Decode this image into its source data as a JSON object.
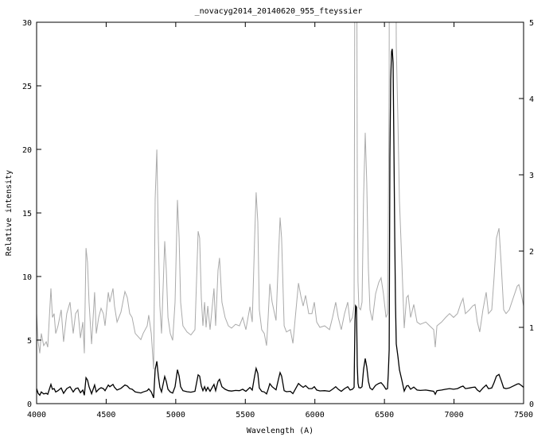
{
  "chart_data": {
    "type": "line",
    "title": "_novacyg2014_20140620_955_fteyssier",
    "xlabel": "Wavelength (A)",
    "ylabel": "Relative intensity",
    "xlim": [
      4000,
      7500
    ],
    "ylim_left": [
      0,
      30
    ],
    "ylim_right": [
      0,
      5
    ],
    "x_ticks": [
      4000,
      4500,
      5000,
      5500,
      6000,
      6500,
      7000,
      7500
    ],
    "y_ticks_left": [
      0,
      5,
      10,
      15,
      20,
      25,
      30
    ],
    "y_ticks_right": [
      0,
      1,
      2,
      3,
      4,
      5
    ],
    "grid": false,
    "series": [
      {
        "axis": "left",
        "color": "#000000"
      },
      {
        "axis": "right",
        "color": "#aaaaaa"
      }
    ],
    "points": [
      [
        4000,
        1.18
      ],
      [
        4011,
        0.81
      ],
      [
        4023,
        0.66
      ],
      [
        4034,
        0.92
      ],
      [
        4051,
        0.76
      ],
      [
        4069,
        0.81
      ],
      [
        4080,
        0.74
      ],
      [
        4103,
        1.51
      ],
      [
        4114,
        1.13
      ],
      [
        4126,
        1.18
      ],
      [
        4137,
        0.92
      ],
      [
        4154,
        1.02
      ],
      [
        4177,
        1.23
      ],
      [
        4194,
        0.81
      ],
      [
        4217,
        1.18
      ],
      [
        4240,
        1.33
      ],
      [
        4263,
        0.92
      ],
      [
        4280,
        1.18
      ],
      [
        4297,
        1.23
      ],
      [
        4315,
        0.86
      ],
      [
        4332,
        1.07
      ],
      [
        4343,
        0.66
      ],
      [
        4355,
        2.04
      ],
      [
        4366,
        1.85
      ],
      [
        4377,
        1.33
      ],
      [
        4395,
        0.78
      ],
      [
        4417,
        1.46
      ],
      [
        4429,
        0.92
      ],
      [
        4446,
        1.13
      ],
      [
        4463,
        1.25
      ],
      [
        4480,
        1.18
      ],
      [
        4492,
        1.02
      ],
      [
        4515,
        1.46
      ],
      [
        4526,
        1.33
      ],
      [
        4549,
        1.51
      ],
      [
        4560,
        1.28
      ],
      [
        4578,
        1.07
      ],
      [
        4606,
        1.2
      ],
      [
        4635,
        1.47
      ],
      [
        4652,
        1.39
      ],
      [
        4669,
        1.18
      ],
      [
        4686,
        1.13
      ],
      [
        4709,
        0.92
      ],
      [
        4749,
        0.84
      ],
      [
        4766,
        0.92
      ],
      [
        4795,
        1.02
      ],
      [
        4806,
        1.16
      ],
      [
        4824,
        0.92
      ],
      [
        4841,
        0.45
      ],
      [
        4852,
        2.69
      ],
      [
        4864,
        3.33
      ],
      [
        4875,
        2.17
      ],
      [
        4886,
        1.28
      ],
      [
        4898,
        0.92
      ],
      [
        4921,
        2.13
      ],
      [
        4932,
        1.75
      ],
      [
        4944,
        1.13
      ],
      [
        4961,
        0.92
      ],
      [
        4978,
        0.83
      ],
      [
        4995,
        1.33
      ],
      [
        5012,
        2.67
      ],
      [
        5024,
        2.17
      ],
      [
        5035,
        1.33
      ],
      [
        5052,
        1.02
      ],
      [
        5081,
        0.94
      ],
      [
        5109,
        0.9
      ],
      [
        5138,
        0.97
      ],
      [
        5161,
        2.26
      ],
      [
        5172,
        2.17
      ],
      [
        5184,
        1.39
      ],
      [
        5195,
        1.02
      ],
      [
        5207,
        1.33
      ],
      [
        5218,
        1.0
      ],
      [
        5230,
        1.28
      ],
      [
        5247,
        0.97
      ],
      [
        5275,
        1.51
      ],
      [
        5287,
        1.02
      ],
      [
        5304,
        1.75
      ],
      [
        5315,
        1.91
      ],
      [
        5332,
        1.33
      ],
      [
        5355,
        1.13
      ],
      [
        5378,
        1.02
      ],
      [
        5401,
        0.99
      ],
      [
        5430,
        1.04
      ],
      [
        5458,
        1.02
      ],
      [
        5481,
        1.13
      ],
      [
        5504,
        0.97
      ],
      [
        5533,
        1.27
      ],
      [
        5550,
        1.07
      ],
      [
        5567,
        2.17
      ],
      [
        5578,
        2.77
      ],
      [
        5590,
        2.38
      ],
      [
        5601,
        1.23
      ],
      [
        5618,
        0.97
      ],
      [
        5636,
        0.92
      ],
      [
        5653,
        0.76
      ],
      [
        5664,
        1.13
      ],
      [
        5676,
        1.57
      ],
      [
        5693,
        1.33
      ],
      [
        5721,
        1.09
      ],
      [
        5739,
        1.96
      ],
      [
        5750,
        2.44
      ],
      [
        5761,
        2.17
      ],
      [
        5779,
        1.02
      ],
      [
        5796,
        0.94
      ],
      [
        5824,
        0.97
      ],
      [
        5842,
        0.79
      ],
      [
        5859,
        1.13
      ],
      [
        5882,
        1.58
      ],
      [
        5899,
        1.41
      ],
      [
        5916,
        1.28
      ],
      [
        5933,
        1.42
      ],
      [
        5956,
        1.18
      ],
      [
        5979,
        1.18
      ],
      [
        5996,
        1.33
      ],
      [
        6013,
        1.07
      ],
      [
        6036,
        1.0
      ],
      [
        6070,
        1.02
      ],
      [
        6105,
        0.97
      ],
      [
        6127,
        1.13
      ],
      [
        6150,
        1.33
      ],
      [
        6168,
        1.13
      ],
      [
        6190,
        0.97
      ],
      [
        6213,
        1.18
      ],
      [
        6236,
        1.33
      ],
      [
        6253,
        1.07
      ],
      [
        6270,
        1.13
      ],
      [
        6282,
        1.28
      ],
      [
        6288,
        6.5
      ],
      [
        6293,
        7.7
      ],
      [
        6299,
        7.6
      ],
      [
        6305,
        3.0
      ],
      [
        6310,
        1.6
      ],
      [
        6316,
        1.26
      ],
      [
        6328,
        1.23
      ],
      [
        6339,
        1.33
      ],
      [
        6350,
        2.69
      ],
      [
        6362,
        3.55
      ],
      [
        6373,
        2.9
      ],
      [
        6385,
        1.75
      ],
      [
        6396,
        1.23
      ],
      [
        6413,
        1.09
      ],
      [
        6436,
        1.44
      ],
      [
        6459,
        1.59
      ],
      [
        6476,
        1.65
      ],
      [
        6493,
        1.44
      ],
      [
        6511,
        1.13
      ],
      [
        6522,
        1.18
      ],
      [
        6528,
        2.4
      ],
      [
        6534,
        4.25
      ],
      [
        6539,
        19.3
      ],
      [
        6545,
        25.5
      ],
      [
        6551,
        27.7
      ],
      [
        6556,
        27.9
      ],
      [
        6562,
        26.8
      ],
      [
        6568,
        20.5
      ],
      [
        6574,
        13.0
      ],
      [
        6579,
        8.0
      ],
      [
        6585,
        4.7
      ],
      [
        6597,
        3.7
      ],
      [
        6608,
        2.66
      ],
      [
        6625,
        1.85
      ],
      [
        6642,
        0.99
      ],
      [
        6659,
        1.39
      ],
      [
        6671,
        1.42
      ],
      [
        6688,
        1.13
      ],
      [
        6711,
        1.3
      ],
      [
        6734,
        1.07
      ],
      [
        6757,
        1.04
      ],
      [
        6797,
        1.07
      ],
      [
        6825,
        1.02
      ],
      [
        6854,
        0.97
      ],
      [
        6865,
        0.74
      ],
      [
        6877,
        1.02
      ],
      [
        6911,
        1.07
      ],
      [
        6940,
        1.13
      ],
      [
        6968,
        1.18
      ],
      [
        6997,
        1.13
      ],
      [
        7025,
        1.18
      ],
      [
        7048,
        1.31
      ],
      [
        7065,
        1.38
      ],
      [
        7082,
        1.18
      ],
      [
        7111,
        1.23
      ],
      [
        7134,
        1.28
      ],
      [
        7151,
        1.3
      ],
      [
        7168,
        1.07
      ],
      [
        7185,
        0.94
      ],
      [
        7208,
        1.23
      ],
      [
        7231,
        1.46
      ],
      [
        7248,
        1.18
      ],
      [
        7271,
        1.23
      ],
      [
        7288,
        1.65
      ],
      [
        7305,
        2.17
      ],
      [
        7323,
        2.3
      ],
      [
        7340,
        1.8
      ],
      [
        7357,
        1.23
      ],
      [
        7374,
        1.18
      ],
      [
        7397,
        1.23
      ],
      [
        7426,
        1.39
      ],
      [
        7454,
        1.54
      ],
      [
        7466,
        1.56
      ],
      [
        7483,
        1.44
      ],
      [
        7500,
        1.28
      ]
    ]
  }
}
